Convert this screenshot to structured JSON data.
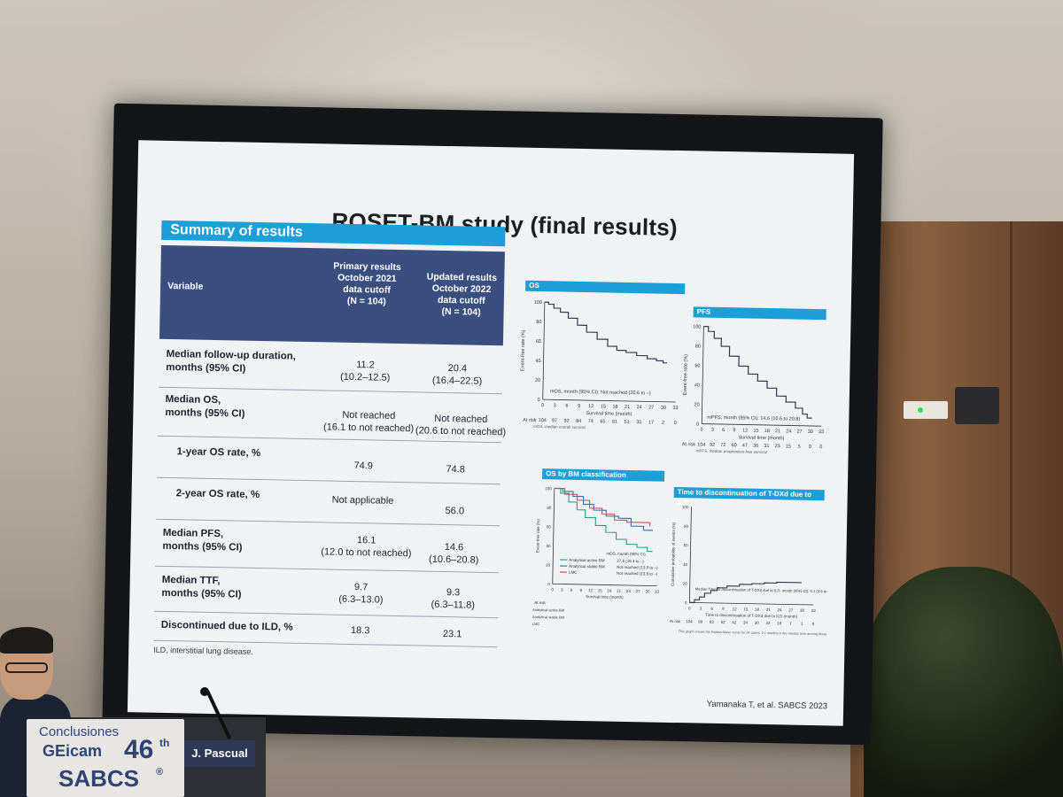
{
  "slide": {
    "title": "ROSET-BM study (final results)",
    "section_header": "Summary of results",
    "table": {
      "headers": {
        "variable": "Variable",
        "primary": "Primary results\nOctober 2021\ndata cutoff\n(N = 104)",
        "updated": "Updated results\nOctober 2022\ndata cutoff\n(N = 104)"
      },
      "rows": [
        {
          "label": "Median follow-up duration,\nmonths (95% CI)",
          "primary": "11.2\n(10.2–12.5)",
          "updated": "20.4\n(16.4–22.5)"
        },
        {
          "label": "Median OS,\nmonths (95% CI)",
          "primary": "Not reached\n(16.1 to not reached)",
          "updated": "Not reached\n(20.6 to not reached)"
        },
        {
          "label": "1-year OS rate, %",
          "primary": "74.9",
          "updated": "74.8"
        },
        {
          "label": "2-year OS rate, %",
          "primary": "Not applicable",
          "updated": "56.0"
        },
        {
          "label": "Median PFS,\nmonths (95% CI)",
          "primary": "16.1\n(12.0 to not reached)",
          "updated": "14.6\n(10.6–20.8)"
        },
        {
          "label": "Median TTF,\nmonths (95% CI)",
          "primary": "9.7\n(6.3–13.0)",
          "updated": "9.3\n(6.3–11.8)"
        },
        {
          "label": "Discontinued due to ILD, %",
          "primary": "18.3",
          "updated": "23.1"
        }
      ]
    },
    "footnote": "ILD, interstitial lung disease.",
    "citation": "Yamanaka T, et al. SABCS 2023",
    "panels": {
      "os": {
        "label": "OS",
        "ylabel": "Event-free rate (%)",
        "xlabel": "Survival time (month)",
        "annotation": "mOS, month (95% CI): Not reached (20.6 to –)",
        "at_risk_label": "At risk",
        "at_risk": [
          "104",
          "97",
          "92",
          "84",
          "74",
          "65",
          "61",
          "51",
          "35",
          "17",
          "2",
          "0"
        ],
        "subnote": "mOS, median overall survival"
      },
      "pfs": {
        "label": "PFS",
        "ylabel": "Event-free rate (%)",
        "xlabel": "Survival time (month)",
        "annotation": "mPFS, month (95% CI): 14.6 (10.6 to 20.8)",
        "at_risk_label": "At risk",
        "at_risk": [
          "104",
          "92",
          "72",
          "60",
          "47",
          "36",
          "31",
          "23",
          "15",
          "5",
          "0",
          "0"
        ],
        "subnote": "mPFS, median progression-free survival"
      },
      "os_bm": {
        "label": "OS by BM classification",
        "ylabel": "Event-free rate (%)",
        "xlabel": "Survival time (month)",
        "legend_title": "mOS, month (95% CI)",
        "legend": [
          {
            "name": "Analytical active BM",
            "value": "27.6 (16.4 to –)"
          },
          {
            "name": "Analytical stable BM",
            "value": "Not reached (13.9 to –)"
          },
          {
            "name": "LMC",
            "value": "Not reached (13.6 to –)"
          }
        ],
        "at_risk_label": "At risk",
        "rows": [
          "Analytical active BM",
          "Analytical stable BM",
          "LMC"
        ]
      },
      "ttd": {
        "label": "Time to discontinuation of T-DXd due to ILD",
        "ylabel": "Cumulative probability of events (%)",
        "xlabel": "Time to discontinuation of T-DXd due to ILD (month)",
        "annotation": "Median Time to discontinuation of T-DXd due to ILD, month (95% CI): 5.1 (3.6 to 6.8)",
        "at_risk_label": "At risk",
        "at_risk": [
          "104",
          "89",
          "63",
          "52",
          "42",
          "34",
          "30",
          "22",
          "16",
          "7",
          "1",
          "0"
        ],
        "subnote": "This graph shows the Kaplan-Meier curve for 24 cases. 5.1 months is the median time among those who had ILD/drug disorder."
      },
      "x_ticks": [
        "0",
        "3",
        "6",
        "9",
        "12",
        "15",
        "18",
        "21",
        "24",
        "27",
        "30",
        "33"
      ],
      "y_ticks": [
        "0",
        "20",
        "40",
        "60",
        "80",
        "100"
      ]
    }
  },
  "event": {
    "placard_line1": "Conclusiones",
    "placard_brand": "GEicam",
    "placard_number": "46",
    "placard_suffix": "th",
    "placard_line3": "SABCS",
    "placard_mark": "®",
    "speaker": "J. Pascual"
  },
  "colors": {
    "header_blue": "#1c9fd6",
    "table_header_navy": "#3a4f7f",
    "curve": "#2b3a55",
    "series_active": "#2a9a88",
    "series_stable": "#2f6fb3",
    "series_lmc": "#c8505a"
  }
}
